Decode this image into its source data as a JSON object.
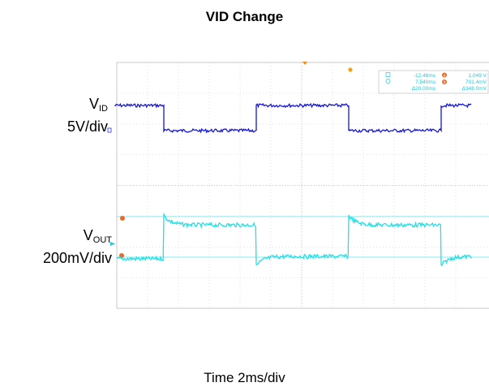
{
  "chart_data": {
    "type": "line",
    "title": "VID Change",
    "xlabel": "Time 2ms/div",
    "grid": true,
    "channels": [
      {
        "label_main": "V",
        "label_sub": "ID",
        "scale": "5V/div",
        "color": "#1515d8"
      },
      {
        "label_main": "V",
        "label_sub": "OUT",
        "scale": "200mV/div",
        "color": "#22e0e6"
      }
    ],
    "series": [
      {
        "name": "VID",
        "x": [
          -3.2,
          0.0,
          0.0,
          6.0,
          6.0,
          12.0,
          12.0,
          18.0,
          18.0,
          20.0
        ],
        "values": [
          2.0,
          2.0,
          0.0,
          0.0,
          2.0,
          2.0,
          0.0,
          0.0,
          2.0,
          2.0
        ]
      },
      {
        "name": "VOUT",
        "segments": [
          {
            "t0": -3.2,
            "t1": 0.0,
            "v0": 0.0,
            "shape": "flat"
          },
          {
            "t0": 0.0,
            "t1": 6.0,
            "v0": 0.9,
            "v1": 0.7,
            "shape": "overshoot"
          },
          {
            "t0": 6.0,
            "t1": 12.0,
            "v0": -0.15,
            "v1": 0.05,
            "shape": "undershoot"
          },
          {
            "t0": 12.0,
            "t1": 18.0,
            "v0": 0.9,
            "v1": 0.7,
            "shape": "overshoot"
          },
          {
            "t0": 18.0,
            "t1": 20.0,
            "v0": -0.15,
            "v1": 0.05,
            "shape": "undershoot"
          }
        ]
      }
    ],
    "cursor_readout": {
      "time_a": "-12.46ms",
      "level_a": "1.049 V",
      "time_b": "7.540ms",
      "level_b": "701.4mV",
      "delta_time": "Δ20.00ms",
      "delta_level": "Δ348.0mV",
      "marker_a": "a",
      "marker_b": "b"
    }
  }
}
